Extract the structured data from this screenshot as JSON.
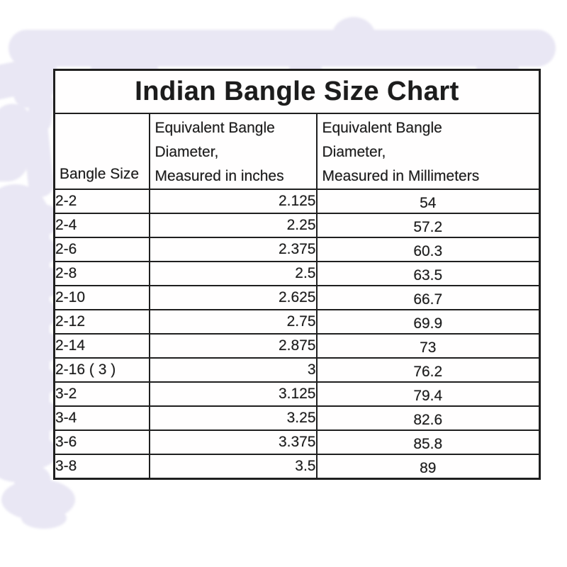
{
  "chart_data": {
    "type": "table",
    "title": "Indian Bangle Size Chart",
    "columns": [
      "Bangle Size",
      "Equivalent Bangle\nDiameter,\nMeasured in inches",
      "Equivalent Bangle\nDiameter,\nMeasured in Millimeters"
    ],
    "rows": [
      [
        "2-2",
        "2.125",
        "54"
      ],
      [
        "2-4",
        "2.25",
        "57.2"
      ],
      [
        "2-6",
        "2.375",
        "60.3"
      ],
      [
        "2-8",
        "2.5",
        "63.5"
      ],
      [
        "2-10",
        "2.625",
        "66.7"
      ],
      [
        "2-12",
        "2.75",
        "69.9"
      ],
      [
        "2-14",
        "2.875",
        "73"
      ],
      [
        "2-16 ( 3 )",
        "3",
        "76.2"
      ],
      [
        "3-2",
        "3.125",
        "79.4"
      ],
      [
        "3-4",
        "3.25",
        "82.6"
      ],
      [
        "3-6",
        "3.375",
        "85.8"
      ],
      [
        "3-8",
        "3.5",
        "89"
      ]
    ]
  },
  "colors": {
    "background": "#ffffff",
    "watermark": "#e9e7f4",
    "border": "#1f1f1f",
    "text": "#1c1c1c"
  }
}
